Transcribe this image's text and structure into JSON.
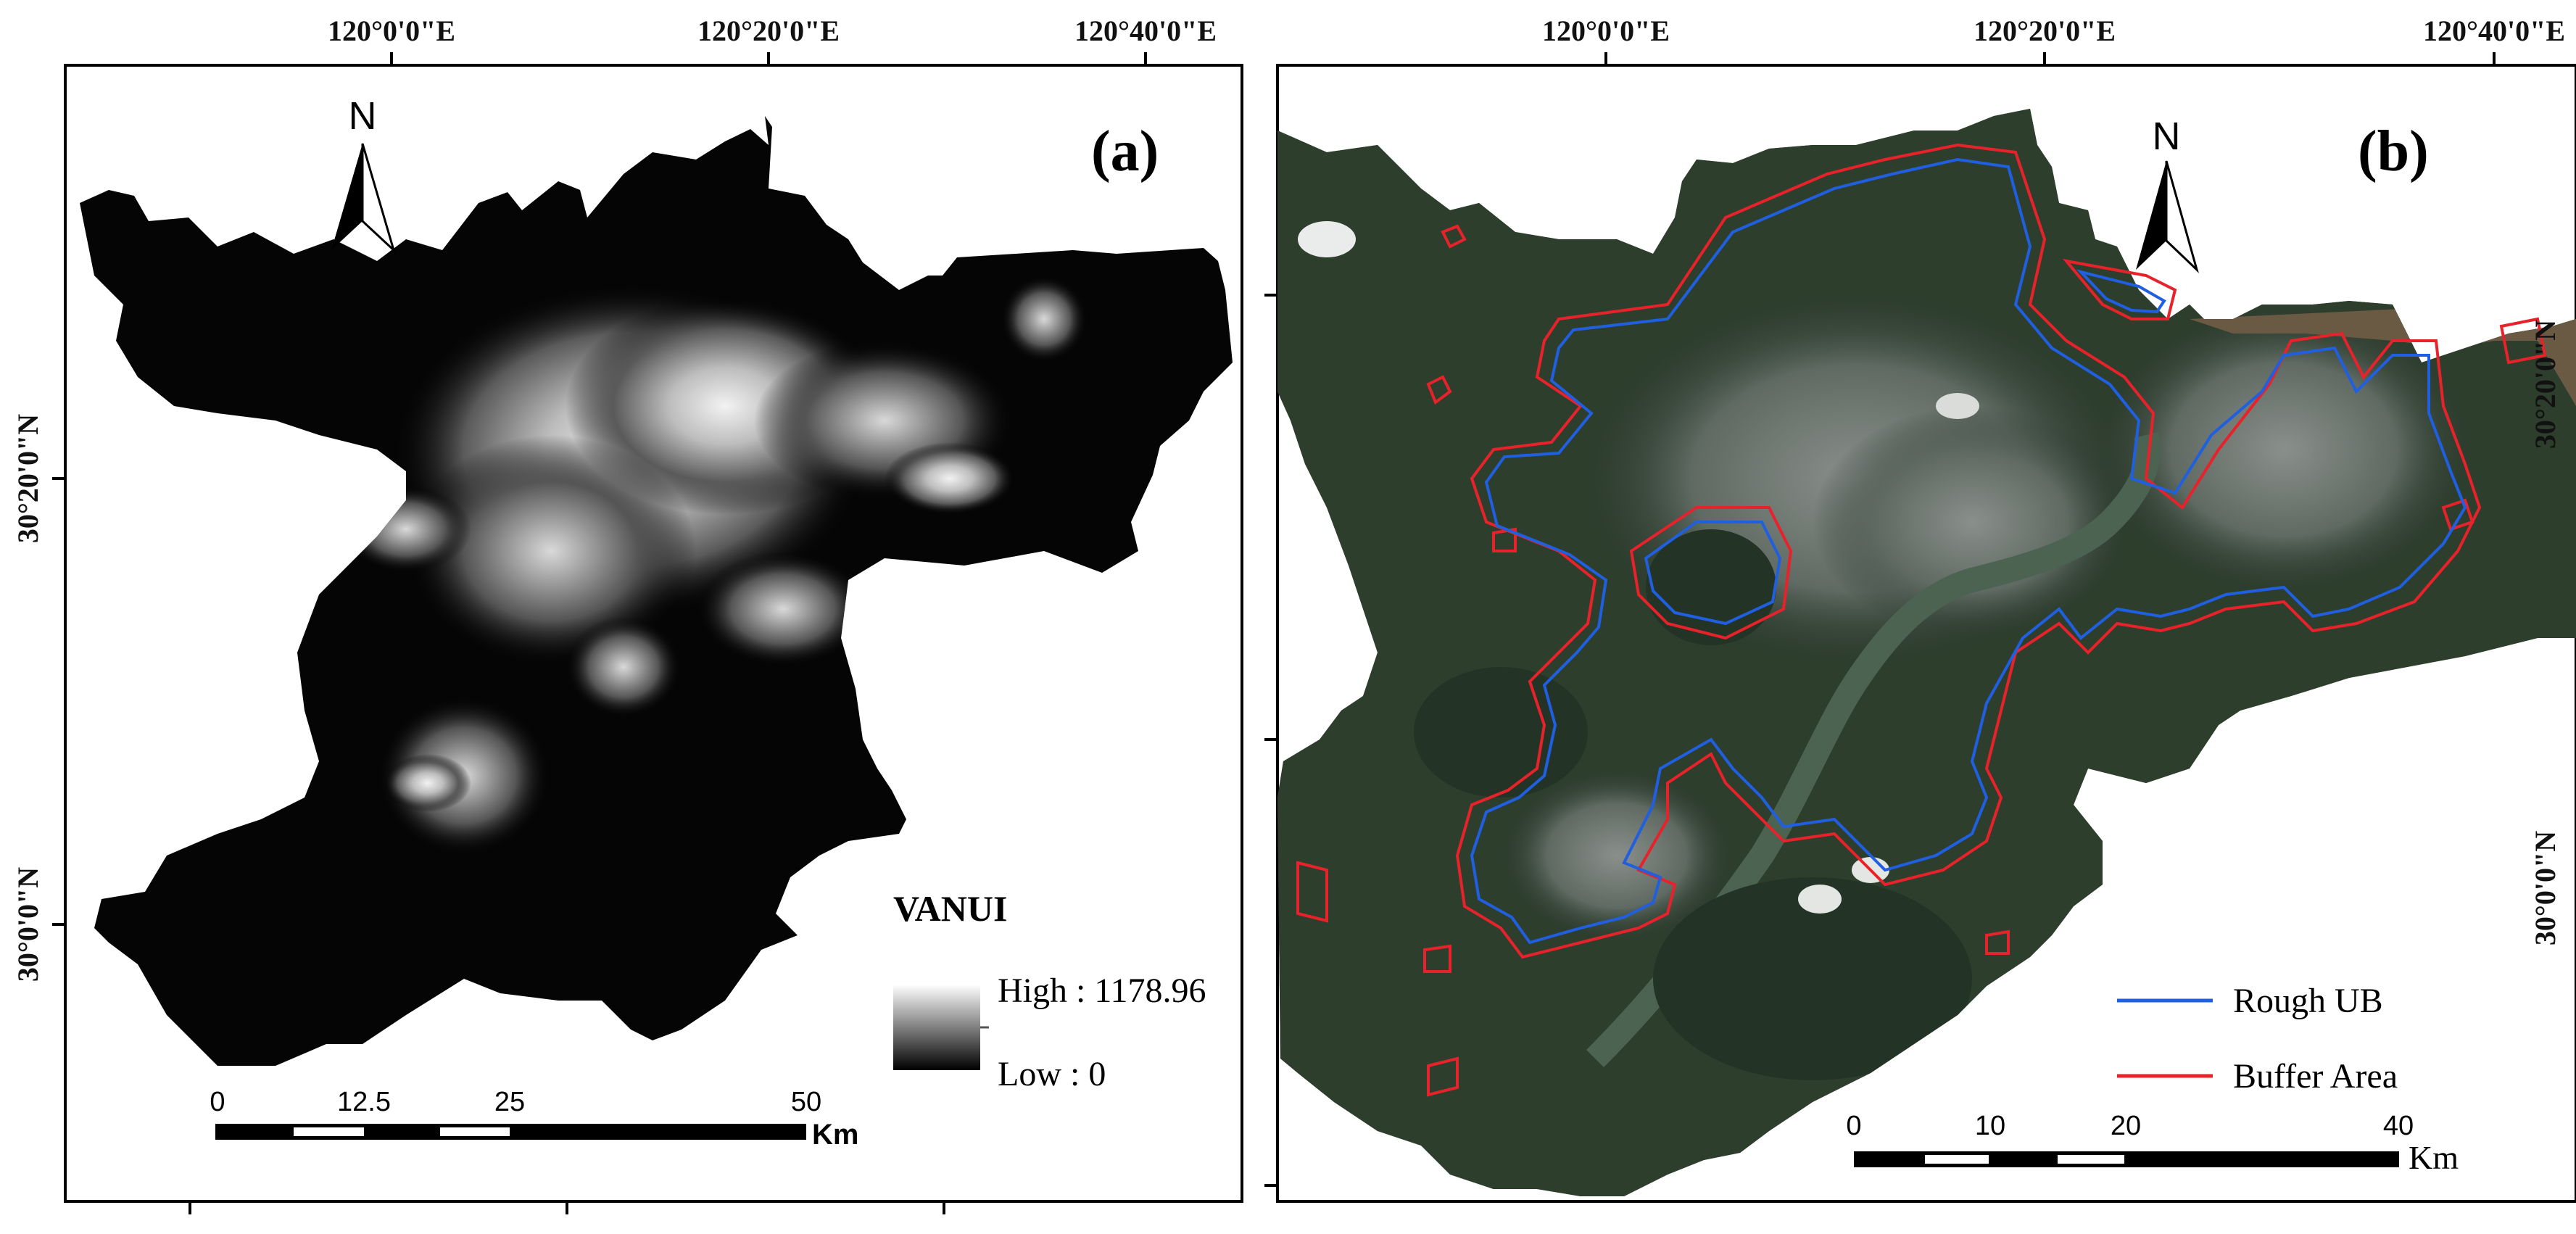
{
  "panel_a": {
    "label": "(a)",
    "top_axis": [
      "120°0'0\"E",
      "120°20'0\"E",
      "120°40'0\"E"
    ],
    "left_axis": [
      "30°20'0\"N",
      "30°0'0\"N"
    ],
    "north": "N",
    "legend": {
      "title": "VANUI",
      "high": "High : 1178.96",
      "low": "Low : 0",
      "ramp_colors": [
        "#ffffff",
        "#000000"
      ]
    },
    "scale": {
      "ticks": [
        "0",
        "12.5",
        "25",
        "50"
      ],
      "unit": "Km"
    }
  },
  "panel_b": {
    "label": "(b)",
    "top_axis": [
      "120°0'0\"E",
      "120°20'0\"E",
      "120°40'0\"E"
    ],
    "right_axis": [
      "30°20'0\"N",
      "30°0'0\"N"
    ],
    "north": "N",
    "legend": [
      {
        "label": "Rough UB",
        "color": "#1f5fe0"
      },
      {
        "label": "Buffer Area",
        "color": "#e8222a"
      }
    ],
    "scale": {
      "ticks": [
        "0",
        "10",
        "20",
        "40"
      ],
      "unit": "Km"
    }
  }
}
